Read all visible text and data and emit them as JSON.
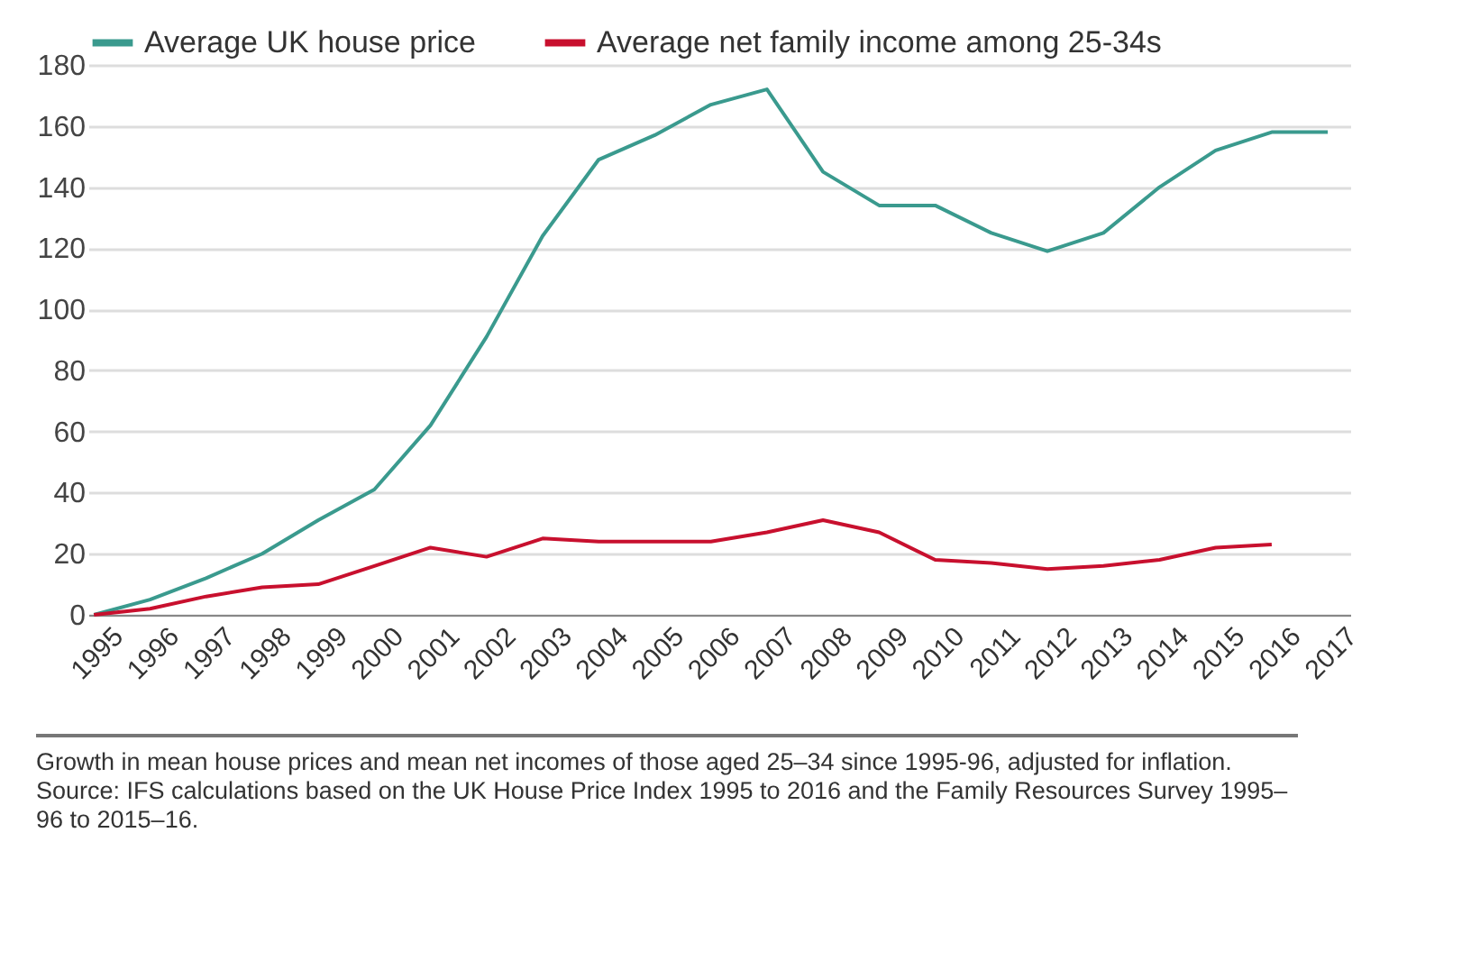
{
  "chart_data": {
    "type": "line",
    "categories": [
      "1995",
      "1996",
      "1997",
      "1998",
      "1999",
      "2000",
      "2001",
      "2002",
      "2003",
      "2004",
      "2005",
      "2006",
      "2007",
      "2008",
      "2009",
      "2010",
      "2011",
      "2012",
      "2013",
      "2014",
      "2015",
      "2016",
      "2017"
    ],
    "series": [
      {
        "name": "Average UK house price",
        "color": "#3a9a8e",
        "values": [
          0,
          5,
          12,
          20,
          31,
          41,
          62,
          91,
          124,
          149,
          157,
          167,
          172,
          145,
          134,
          134,
          125,
          119,
          125,
          140,
          152,
          158,
          158
        ]
      },
      {
        "name": "Average net family income among 25-34s",
        "color": "#c8102e",
        "values": [
          0,
          2,
          6,
          9,
          10,
          16,
          22,
          19,
          25,
          24,
          24,
          24,
          27,
          31,
          27,
          18,
          17,
          15,
          16,
          18,
          22,
          23,
          null
        ]
      }
    ],
    "ylim": [
      0,
      180
    ],
    "yticks": [
      0,
      20,
      40,
      60,
      80,
      100,
      120,
      140,
      160,
      180
    ],
    "grid": "y",
    "legend": "top left",
    "marker": "none",
    "line_style": "solid",
    "annotations": [
      "Growth in mean house prices and mean net incomes of those aged 25–34 since 1995-96, adjusted for inflation. Source: IFS calculations based on the UK House Price Index 1995 to 2016 and the Family Resources Survey 1995–96 to 2015–16."
    ]
  }
}
